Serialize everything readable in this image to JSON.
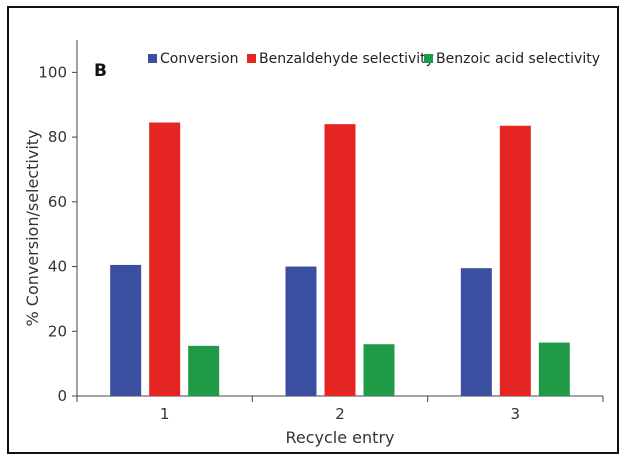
{
  "chart_data": {
    "type": "bar",
    "panel_label": "B",
    "xlabel": "Recycle entry",
    "ylabel": "% Conversion/selectivity",
    "categories": [
      "1",
      "2",
      "3"
    ],
    "ylim": [
      0,
      110
    ],
    "yticks": [
      "0",
      "20",
      "40",
      "60",
      "80",
      "100"
    ],
    "grid": false,
    "legend_position": "top",
    "series": [
      {
        "name": "Conversion",
        "color": "#3a4fa0",
        "values": [
          40.5,
          40.0,
          39.5
        ]
      },
      {
        "name": "Benzaldehyde selectivity",
        "color": "#e52521",
        "values": [
          84.5,
          84.0,
          83.5
        ]
      },
      {
        "name": "Benzoic acid selectivity",
        "color": "#1f9b48",
        "values": [
          15.5,
          16.0,
          16.5
        ]
      }
    ]
  }
}
